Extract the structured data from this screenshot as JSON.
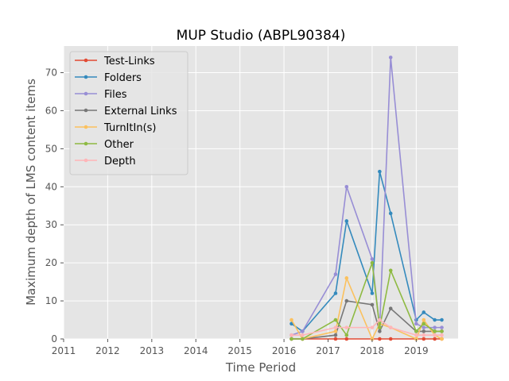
{
  "chart_data": {
    "type": "line",
    "title": "MUP Studio (ABPL90384)",
    "xlabel": "Time Period",
    "ylabel": "Maximum depth of LMS content items",
    "xlim": [
      2011.0,
      2019.95
    ],
    "ylim": [
      0,
      77
    ],
    "x_ticks": [
      "2011",
      "2012",
      "2013",
      "2014",
      "2015",
      "2016",
      "2017",
      "2018",
      "2019"
    ],
    "y_ticks": [
      "0",
      "10",
      "20",
      "30",
      "40",
      "50",
      "60",
      "70"
    ],
    "grid": true,
    "legend_position": "upper-left",
    "x": [
      2016.17,
      2016.42,
      2017.17,
      2017.42,
      2018.0,
      2018.17,
      2018.42,
      2019.0,
      2019.17,
      2019.42,
      2019.58
    ],
    "series": [
      {
        "name": "Test-Links",
        "color": "#e24a33",
        "values": [
          0,
          0,
          0,
          0,
          0,
          0,
          0,
          0,
          0,
          0,
          0
        ]
      },
      {
        "name": "Folders",
        "color": "#348abd",
        "values": [
          4,
          2,
          12,
          31,
          12,
          44,
          33,
          5,
          7,
          5,
          5
        ]
      },
      {
        "name": "Files",
        "color": "#988ed5",
        "values": [
          1,
          2,
          17,
          40,
          21,
          3,
          74,
          4,
          3,
          3,
          3
        ]
      },
      {
        "name": "External Links",
        "color": "#777777",
        "values": [
          0,
          0,
          1,
          10,
          9,
          2,
          8,
          2,
          2,
          2,
          2
        ]
      },
      {
        "name": "TurnItIn(s)",
        "color": "#fbc15e",
        "values": [
          5,
          0,
          2,
          16,
          0,
          4,
          3,
          0,
          5,
          1,
          0
        ]
      },
      {
        "name": "Other",
        "color": "#8eba42",
        "values": [
          0,
          0,
          5,
          1,
          20,
          3,
          18,
          2,
          4,
          2,
          2
        ]
      },
      {
        "name": "Depth",
        "color": "#ffb5b8",
        "values": [
          1,
          1,
          3,
          3,
          3,
          5,
          3,
          1,
          1,
          1,
          1
        ]
      }
    ]
  }
}
